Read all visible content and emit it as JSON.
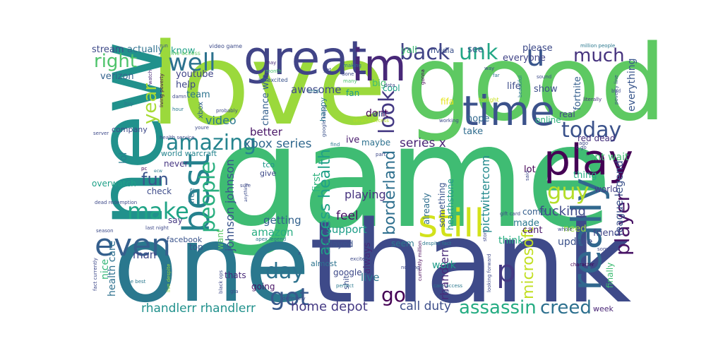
{
  "words": [
    {
      "text": "game",
      "color": "#3fbc73"
    },
    {
      "text": "love",
      "color": "#9bd93c"
    },
    {
      "text": "thank",
      "color": "#3e4a89"
    },
    {
      "text": "good",
      "color": "#5ec962"
    },
    {
      "text": "one",
      "color": "#2a788e"
    },
    {
      "text": "new",
      "color": "#21918c"
    },
    {
      "text": "great",
      "color": "#414487"
    },
    {
      "text": "im",
      "color": "#482878"
    },
    {
      "text": "time",
      "color": "#3b528b"
    },
    {
      "text": "play",
      "color": "#440154"
    },
    {
      "text": "still",
      "color": "#d2e21b"
    },
    {
      "text": "really",
      "color": "#31688e"
    },
    {
      "text": "best",
      "color": "#26828e"
    },
    {
      "text": "even",
      "color": "#355f8d"
    },
    {
      "text": "u",
      "color": "#39568c"
    },
    {
      "text": "well",
      "color": "#2c728e"
    },
    {
      "text": "back",
      "color": "#414487"
    },
    {
      "text": "unk",
      "color": "#22a785"
    },
    {
      "text": "today",
      "color": "#3b528b"
    },
    {
      "text": "amazing",
      "color": "#25848e"
    },
    {
      "text": "guy",
      "color": "#b5de2b"
    },
    {
      "text": "make",
      "color": "#20a486"
    },
    {
      "text": "got",
      "color": "#38598c"
    },
    {
      "text": "day",
      "color": "#2c728e"
    },
    {
      "text": "look",
      "color": "#443983"
    },
    {
      "text": "player",
      "color": "#471365"
    },
    {
      "text": "people",
      "color": "#29af7f"
    },
    {
      "text": "assassin",
      "color": "#25ac82"
    },
    {
      "text": "creed",
      "color": "#2d708e"
    },
    {
      "text": "p",
      "color": "#443a83"
    },
    {
      "text": "much",
      "color": "#46337e"
    },
    {
      "text": "right",
      "color": "#4ec36b"
    },
    {
      "text": "year",
      "color": "#a8db34"
    },
    {
      "text": "access health",
      "color": "#1fa187"
    },
    {
      "text": "borderland",
      "color": "#2e6f8e"
    },
    {
      "text": "fun",
      "color": "#3a548c"
    },
    {
      "text": "go",
      "color": "#440154"
    },
    {
      "text": "microsoft",
      "color": "#c2df23"
    },
    {
      "text": "rhandlerr rhandlerr",
      "color": "#21918c"
    },
    {
      "text": "home depot",
      "color": "#443983"
    },
    {
      "text": "call duty",
      "color": "#3d4e8a"
    },
    {
      "text": "xbox series",
      "color": "#31688e"
    },
    {
      "text": "series x",
      "color": "#482475"
    },
    {
      "text": "johnson johnson",
      "color": "#3a548c"
    },
    {
      "text": "fucking",
      "color": "#3e4989"
    },
    {
      "text": "pictwittercom",
      "color": "#238a8d"
    },
    {
      "text": "league legend",
      "color": "#3b528b"
    },
    {
      "text": "rhandlerr",
      "color": "#482878"
    },
    {
      "text": "video",
      "color": "#2a788e"
    },
    {
      "text": "playing",
      "color": "#46327e"
    },
    {
      "text": "amazon",
      "color": "#27ad81"
    },
    {
      "text": "support",
      "color": "#1f9e89"
    },
    {
      "text": "feel",
      "color": "#471063"
    },
    {
      "text": "getting",
      "color": "#33628d"
    },
    {
      "text": "awesome",
      "color": "#3e4989"
    },
    {
      "text": "better",
      "color": "#471365"
    },
    {
      "text": "first",
      "color": "#2db27d"
    },
    {
      "text": "cant wait",
      "color": "#42be71"
    },
    {
      "text": "lol",
      "color": "#287c8e"
    },
    {
      "text": "fortnite",
      "color": "#355f8d"
    },
    {
      "text": "everything",
      "color": "#39568c"
    },
    {
      "text": "live",
      "color": "#2a768e"
    },
    {
      "text": "work",
      "color": "#1e9c89"
    },
    {
      "text": "always",
      "color": "#482878"
    },
    {
      "text": "update",
      "color": "#3b528b"
    },
    {
      "text": "think",
      "color": "#27ad81"
    },
    {
      "text": "man",
      "color": "#3f4889"
    },
    {
      "text": "nice",
      "color": "#35b779"
    },
    {
      "text": "health care",
      "color": "#2d708e"
    },
    {
      "text": "made",
      "color": "#2a788e"
    },
    {
      "text": "friend",
      "color": "#404588"
    },
    {
      "text": "need",
      "color": "#9bd93c"
    },
    {
      "text": "finally",
      "color": "#3fbc73"
    },
    {
      "text": "cant",
      "color": "#481769"
    },
    {
      "text": "take",
      "color": "#2f6c8e"
    },
    {
      "text": "hope",
      "color": "#31688e"
    },
    {
      "text": "life",
      "color": "#3e4c8a"
    },
    {
      "text": "show",
      "color": "#3d4d8a"
    },
    {
      "text": "please",
      "color": "#3e4a89"
    },
    {
      "text": "everyone",
      "color": "#414487"
    },
    {
      "text": "see",
      "color": "#37598c"
    },
    {
      "text": "yall",
      "color": "#3fbc73"
    },
    {
      "text": "nvidia",
      "color": "#3b528b"
    },
    {
      "text": "know",
      "color": "#1fa187"
    },
    {
      "text": "actually",
      "color": "#2d708e"
    },
    {
      "text": "stream",
      "color": "#3e4a89"
    },
    {
      "text": "verizon",
      "color": "#33638d"
    },
    {
      "text": "youtube",
      "color": "#404588"
    },
    {
      "text": "help",
      "color": "#3f4889"
    },
    {
      "text": "team",
      "color": "#2c738e"
    },
    {
      "text": "chance win",
      "color": "#35608d"
    },
    {
      "text": "dont",
      "color": "#440154"
    },
    {
      "text": "ive",
      "color": "#481a6c"
    },
    {
      "text": "maybe",
      "color": "#2d718e"
    },
    {
      "text": "big",
      "color": "#40bd72"
    },
    {
      "text": "fan",
      "color": "#1e9b8a"
    },
    {
      "text": "cool",
      "color": "#1fa088"
    },
    {
      "text": "fifa",
      "color": "#e5e419"
    },
    {
      "text": "online",
      "color": "#2db27d"
    },
    {
      "text": "real",
      "color": "#404588"
    },
    {
      "text": "red dead",
      "color": "#46307e"
    },
    {
      "text": "thing",
      "color": "#25ac82"
    },
    {
      "text": "lot",
      "color": "#440154"
    },
    {
      "text": "world",
      "color": "#433e85"
    },
    {
      "text": "come",
      "color": "#355e8d"
    },
    {
      "text": "already",
      "color": "#2e6e8e"
    },
    {
      "text": "something",
      "color": "#3a548c"
    },
    {
      "text": "hearthstone",
      "color": "#1f958b"
    },
    {
      "text": "overwatch",
      "color": "#1fa188"
    },
    {
      "text": "never",
      "color": "#453581"
    },
    {
      "text": "check",
      "color": "#3e4c8a"
    },
    {
      "text": "say",
      "color": "#453882"
    },
    {
      "text": "top",
      "color": "#39568c"
    },
    {
      "text": "facebook",
      "color": "#3a548c"
    },
    {
      "text": "want",
      "color": "#5ac864"
    },
    {
      "text": "free",
      "color": "#2c728e"
    },
    {
      "text": "thats",
      "color": "#482878"
    },
    {
      "text": "going",
      "color": "#471365"
    },
    {
      "text": "google",
      "color": "#3e4989"
    },
    {
      "text": "shit",
      "color": "#3e4c8a"
    },
    {
      "text": "played",
      "color": "#3b528b"
    },
    {
      "text": "almost",
      "color": "#2c738e"
    },
    {
      "text": "seem",
      "color": "#2a788e"
    },
    {
      "text": "week",
      "color": "#482475"
    },
    {
      "text": "world warcraft",
      "color": "#25848e"
    },
    {
      "text": "xbox",
      "color": "#33628d"
    },
    {
      "text": "tco",
      "color": "#1f968b"
    },
    {
      "text": "give",
      "color": "#3e4a89"
    },
    {
      "text": "company",
      "color": "#3e4989"
    },
    {
      "text": "happy",
      "color": "#2a788e"
    },
    {
      "text": "win",
      "color": "#3b528b"
    },
    {
      "text": "line access",
      "color": "#5ec962"
    },
    {
      "text": "video game",
      "color": "#3e4c8a"
    },
    {
      "text": "may",
      "color": "#482878"
    },
    {
      "text": "im excited",
      "color": "#3a548c"
    },
    {
      "text": "making",
      "color": "#2a788e"
    },
    {
      "text": "done",
      "color": "#3e4989"
    },
    {
      "text": "many",
      "color": "#4ac16d"
    },
    {
      "text": "dota",
      "color": "#3e4989"
    },
    {
      "text": "gonna",
      "color": "#440154"
    },
    {
      "text": "far",
      "color": "#2c728e"
    },
    {
      "text": "tonight",
      "color": "#c8e020"
    },
    {
      "text": "beautiful",
      "color": "#2a788e"
    },
    {
      "text": "sound",
      "color": "#3e4c8a"
    },
    {
      "text": "literally",
      "color": "#46327e"
    },
    {
      "text": "poverty line",
      "color": "#3b528b"
    },
    {
      "text": "million people",
      "color": "#2a788e"
    },
    {
      "text": "way",
      "color": "#3e4989"
    },
    {
      "text": "service access",
      "color": "#b5de2b"
    },
    {
      "text": "working",
      "color": "#3e4a89"
    },
    {
      "text": "google living",
      "color": "#3b528b"
    },
    {
      "text": "find",
      "color": "#2a788e"
    },
    {
      "text": "yet",
      "color": "#3e4989"
    },
    {
      "text": "keep",
      "color": "#2a788e"
    },
    {
      "text": "month",
      "color": "#4ac16d"
    },
    {
      "text": "probably",
      "color": "#3e4989"
    },
    {
      "text": "youre",
      "color": "#3e4c8a"
    },
    {
      "text": "hour",
      "color": "#2a788e"
    },
    {
      "text": "damn",
      "color": "#3e4989"
    },
    {
      "text": "living poverty",
      "color": "#440154"
    },
    {
      "text": "watch",
      "color": "#482878"
    },
    {
      "text": "run",
      "color": "#3b528b"
    },
    {
      "text": "server",
      "color": "#3e4a89"
    },
    {
      "text": "health service",
      "color": "#3e4989"
    },
    {
      "text": "pc",
      "color": "#440154"
    },
    {
      "text": "ecw",
      "color": "#2a788e"
    },
    {
      "text": "buy",
      "color": "#2a788e"
    },
    {
      "text": "sure",
      "color": "#3e4989"
    },
    {
      "text": "anything",
      "color": "#3e4c8a"
    },
    {
      "text": "dead redemption",
      "color": "#3e4989"
    },
    {
      "text": "last night",
      "color": "#3e4989"
    },
    {
      "text": "season",
      "color": "#3e4c8a"
    },
    {
      "text": "apex legend",
      "color": "#2a788e"
    },
    {
      "text": "x",
      "color": "#3e4989"
    },
    {
      "text": "excited",
      "color": "#3e4989"
    },
    {
      "text": "currently million",
      "color": "#440154"
    },
    {
      "text": "nothing",
      "color": "#3e4989"
    },
    {
      "text": "perfect",
      "color": "#2a788e"
    },
    {
      "text": "black ops",
      "color": "#3e4989"
    },
    {
      "text": "gta",
      "color": "#3e4c8a"
    },
    {
      "text": "fact currently",
      "color": "#3e4989"
    },
    {
      "text": "one best",
      "color": "#2a788e"
    },
    {
      "text": "definitely",
      "color": "#3e4989"
    },
    {
      "text": "live despite",
      "color": "#9bd93c"
    },
    {
      "text": "despite fact",
      "color": "#2a788e"
    },
    {
      "text": "story",
      "color": "#3e4989"
    },
    {
      "text": "looking forward",
      "color": "#3e4989"
    },
    {
      "text": "character",
      "color": "#440154"
    },
    {
      "text": "whole",
      "color": "#3e4989"
    },
    {
      "text": "someone",
      "color": "#3e4989"
    },
    {
      "text": "care access",
      "color": "#2a788e"
    },
    {
      "text": "via",
      "color": "#3e4989"
    },
    {
      "text": "gift card",
      "color": "#3e4989"
    },
    {
      "text": "c go",
      "color": "#3e4989"
    },
    {
      "text": "said",
      "color": "#3e4989"
    },
    {
      "text": "use",
      "color": "#3e4989"
    },
    {
      "text": "part",
      "color": "#3e4989"
    },
    {
      "text": "ago",
      "color": "#3e4989"
    },
    {
      "text": "bad",
      "color": "#3e4989"
    }
  ]
}
